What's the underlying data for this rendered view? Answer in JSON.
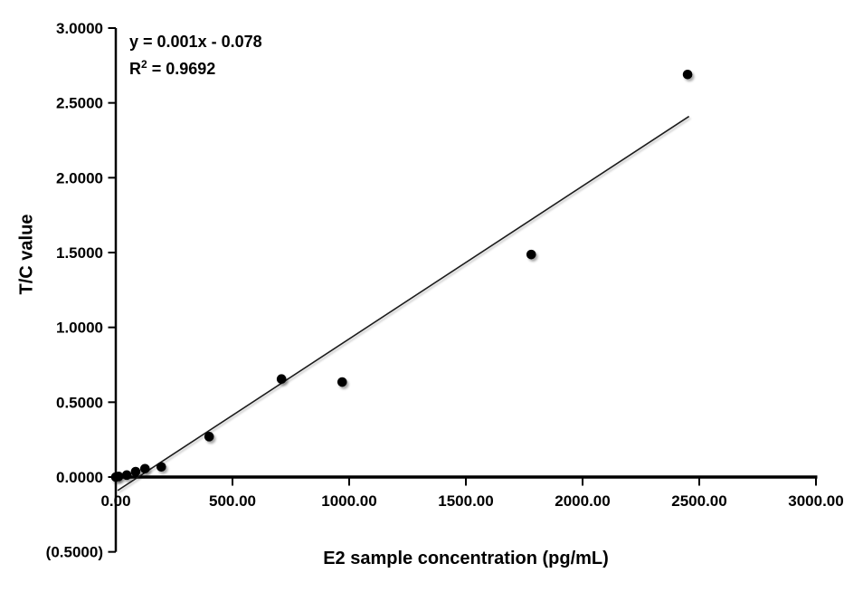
{
  "chart_data": {
    "type": "scatter",
    "title": "",
    "xlabel": "E2  sample concentration (pg/mL)",
    "ylabel": "T/C value",
    "equation": "y = 0.001x - 0.078",
    "r2_prefix": "R",
    "r2_sup": "2",
    "r2_suffix": " = 0.9692",
    "xlim": [
      0,
      3000
    ],
    "ylim": [
      -0.5,
      3.0
    ],
    "grid": false,
    "legend": false,
    "x_ticks": [
      {
        "value": 0,
        "label": "0.00"
      },
      {
        "value": 500,
        "label": "500.00"
      },
      {
        "value": 1000,
        "label": "1000.00"
      },
      {
        "value": 1500,
        "label": "1500.00"
      },
      {
        "value": 2000,
        "label": "2000.00"
      },
      {
        "value": 2500,
        "label": "2500.00"
      },
      {
        "value": 3000,
        "label": "3000.00"
      }
    ],
    "y_ticks": [
      {
        "value": 3.0,
        "label": "3.0000"
      },
      {
        "value": 2.5,
        "label": "2.5000"
      },
      {
        "value": 2.0,
        "label": "2.0000"
      },
      {
        "value": 1.5,
        "label": "1.5000"
      },
      {
        "value": 1.0,
        "label": "1.0000"
      },
      {
        "value": 0.5,
        "label": "0.5000"
      },
      {
        "value": 0.0,
        "label": "0.0000"
      },
      {
        "value": -0.5,
        "label": "(0.5000)",
        "color": "#FF0000"
      }
    ],
    "points": [
      {
        "x": 0,
        "y": 0.0
      },
      {
        "x": 12,
        "y": 0.004
      },
      {
        "x": 47,
        "y": 0.013
      },
      {
        "x": 85,
        "y": 0.036
      },
      {
        "x": 125,
        "y": 0.056
      },
      {
        "x": 195,
        "y": 0.068
      },
      {
        "x": 400,
        "y": 0.27
      },
      {
        "x": 710,
        "y": 0.655
      },
      {
        "x": 970,
        "y": 0.635
      },
      {
        "x": 1780,
        "y": 1.487
      },
      {
        "x": 2450,
        "y": 2.69
      }
    ],
    "trendline": {
      "slope": 0.001,
      "intercept": -0.078,
      "x_start": 8,
      "y_start": -0.09,
      "x_end": 2456,
      "y_end": 2.41
    },
    "colors": {
      "point": "#000000",
      "trendline": "#1a1a1a",
      "axis": "#000000",
      "text": "#000000",
      "negative_label": "#FF0000"
    }
  }
}
